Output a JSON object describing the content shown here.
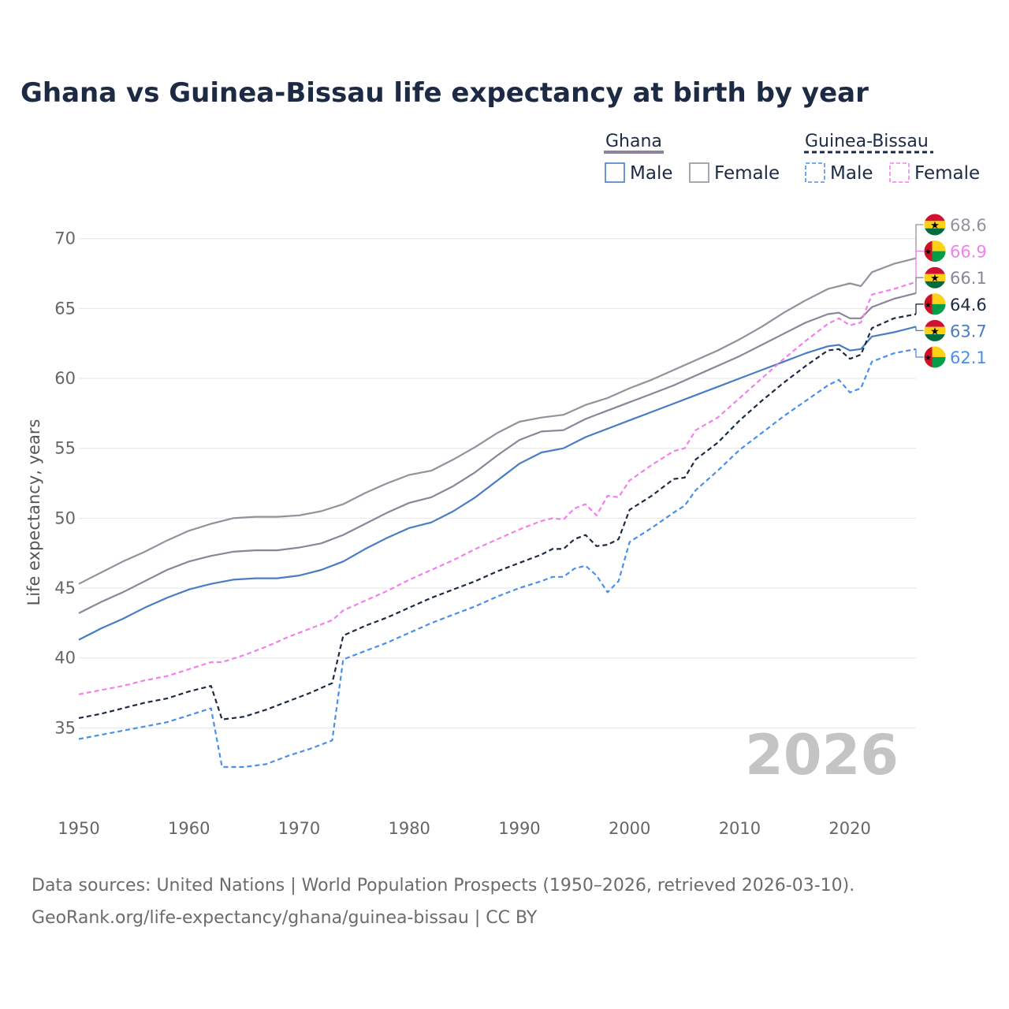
{
  "chart_data": {
    "type": "line",
    "title": "Ghana vs Guinea-Bissau life expectancy at birth by year",
    "ylabel": "Life expectancy, years",
    "xlabel": "",
    "xlim": [
      1950,
      2026
    ],
    "ylim": [
      30,
      71
    ],
    "x_ticks": [
      1950,
      1960,
      1970,
      1980,
      1990,
      2000,
      2010,
      2020
    ],
    "y_ticks": [
      35,
      40,
      45,
      50,
      55,
      60,
      65,
      70
    ],
    "current_year": "2026",
    "legend": {
      "groups": [
        {
          "name": "Ghana",
          "style": "solid",
          "color": "#8e8499",
          "items": [
            {
              "label": "Male",
              "color": "#4a7cc4"
            },
            {
              "label": "Female",
              "color": "#988f9c"
            }
          ]
        },
        {
          "name": "Guinea-Bissau",
          "style": "dashed",
          "color": "#1c2a44",
          "items": [
            {
              "label": "Male",
              "color": "#4a8fe8"
            },
            {
              "label": "Female",
              "color": "#f27fee"
            }
          ]
        }
      ]
    },
    "series": [
      {
        "name": "Ghana Female",
        "country": "Ghana",
        "color": "#988f9c",
        "dash": false,
        "end_label": "68.6",
        "points": [
          [
            1950,
            45.3
          ],
          [
            1952,
            46.1
          ],
          [
            1954,
            46.9
          ],
          [
            1956,
            47.6
          ],
          [
            1958,
            48.4
          ],
          [
            1960,
            49.1
          ],
          [
            1962,
            49.6
          ],
          [
            1964,
            50.0
          ],
          [
            1966,
            50.1
          ],
          [
            1968,
            50.1
          ],
          [
            1970,
            50.2
          ],
          [
            1972,
            50.5
          ],
          [
            1974,
            51.0
          ],
          [
            1976,
            51.8
          ],
          [
            1978,
            52.5
          ],
          [
            1980,
            53.1
          ],
          [
            1982,
            53.4
          ],
          [
            1984,
            54.2
          ],
          [
            1986,
            55.1
          ],
          [
            1988,
            56.1
          ],
          [
            1990,
            56.9
          ],
          [
            1992,
            57.2
          ],
          [
            1994,
            57.4
          ],
          [
            1996,
            58.1
          ],
          [
            1998,
            58.6
          ],
          [
            2000,
            59.3
          ],
          [
            2002,
            59.9
          ],
          [
            2004,
            60.6
          ],
          [
            2006,
            61.3
          ],
          [
            2008,
            62.0
          ],
          [
            2010,
            62.8
          ],
          [
            2012,
            63.7
          ],
          [
            2014,
            64.7
          ],
          [
            2016,
            65.6
          ],
          [
            2018,
            66.4
          ],
          [
            2020,
            66.8
          ],
          [
            2021,
            66.6
          ],
          [
            2022,
            67.6
          ],
          [
            2024,
            68.2
          ],
          [
            2026,
            68.6
          ]
        ]
      },
      {
        "name": "Ghana Male",
        "country": "Ghana",
        "color": "#4a7cc4",
        "dash": false,
        "end_label": "63.7",
        "points": [
          [
            1950,
            41.3
          ],
          [
            1952,
            42.1
          ],
          [
            1954,
            42.8
          ],
          [
            1956,
            43.6
          ],
          [
            1958,
            44.3
          ],
          [
            1960,
            44.9
          ],
          [
            1962,
            45.3
          ],
          [
            1964,
            45.6
          ],
          [
            1966,
            45.7
          ],
          [
            1968,
            45.7
          ],
          [
            1970,
            45.9
          ],
          [
            1972,
            46.3
          ],
          [
            1974,
            46.9
          ],
          [
            1976,
            47.8
          ],
          [
            1978,
            48.6
          ],
          [
            1980,
            49.3
          ],
          [
            1982,
            49.7
          ],
          [
            1984,
            50.5
          ],
          [
            1986,
            51.5
          ],
          [
            1988,
            52.7
          ],
          [
            1990,
            53.9
          ],
          [
            1992,
            54.7
          ],
          [
            1994,
            55.0
          ],
          [
            1996,
            55.8
          ],
          [
            1998,
            56.4
          ],
          [
            2000,
            57.0
          ],
          [
            2002,
            57.6
          ],
          [
            2004,
            58.2
          ],
          [
            2006,
            58.8
          ],
          [
            2008,
            59.4
          ],
          [
            2010,
            60.0
          ],
          [
            2012,
            60.6
          ],
          [
            2014,
            61.2
          ],
          [
            2016,
            61.8
          ],
          [
            2018,
            62.3
          ],
          [
            2019,
            62.4
          ],
          [
            2020,
            62.0
          ],
          [
            2021,
            62.1
          ],
          [
            2022,
            63.0
          ],
          [
            2024,
            63.3
          ],
          [
            2026,
            63.7
          ]
        ]
      },
      {
        "name": "Ghana Female (2nd)",
        "country": "Ghana",
        "color": "#8e8499",
        "dash": false,
        "end_label": "66.1",
        "points": [
          [
            1950,
            43.2
          ],
          [
            1952,
            44.0
          ],
          [
            1954,
            44.7
          ],
          [
            1956,
            45.5
          ],
          [
            1958,
            46.3
          ],
          [
            1960,
            46.9
          ],
          [
            1962,
            47.3
          ],
          [
            1964,
            47.6
          ],
          [
            1966,
            47.7
          ],
          [
            1968,
            47.7
          ],
          [
            1970,
            47.9
          ],
          [
            1972,
            48.2
          ],
          [
            1974,
            48.8
          ],
          [
            1976,
            49.6
          ],
          [
            1978,
            50.4
          ],
          [
            1980,
            51.1
          ],
          [
            1982,
            51.5
          ],
          [
            1984,
            52.3
          ],
          [
            1986,
            53.3
          ],
          [
            1988,
            54.5
          ],
          [
            1990,
            55.6
          ],
          [
            1992,
            56.2
          ],
          [
            1994,
            56.3
          ],
          [
            1996,
            57.1
          ],
          [
            1998,
            57.7
          ],
          [
            2000,
            58.3
          ],
          [
            2002,
            58.9
          ],
          [
            2004,
            59.5
          ],
          [
            2006,
            60.2
          ],
          [
            2008,
            60.9
          ],
          [
            2010,
            61.6
          ],
          [
            2012,
            62.4
          ],
          [
            2014,
            63.2
          ],
          [
            2016,
            64.0
          ],
          [
            2018,
            64.6
          ],
          [
            2019,
            64.7
          ],
          [
            2020,
            64.3
          ],
          [
            2021,
            64.3
          ],
          [
            2022,
            65.1
          ],
          [
            2024,
            65.7
          ],
          [
            2026,
            66.1
          ]
        ]
      },
      {
        "name": "Guinea-Bissau Female",
        "country": "Guinea-Bissau",
        "color": "#f27fee",
        "dash": true,
        "end_label": "66.9",
        "points": [
          [
            1950,
            37.4
          ],
          [
            1952,
            37.7
          ],
          [
            1954,
            38.0
          ],
          [
            1956,
            38.4
          ],
          [
            1958,
            38.7
          ],
          [
            1960,
            39.2
          ],
          [
            1962,
            39.7
          ],
          [
            1963,
            39.7
          ],
          [
            1965,
            40.2
          ],
          [
            1967,
            40.8
          ],
          [
            1969,
            41.5
          ],
          [
            1971,
            42.1
          ],
          [
            1973,
            42.7
          ],
          [
            1974,
            43.4
          ],
          [
            1976,
            44.1
          ],
          [
            1978,
            44.8
          ],
          [
            1980,
            45.6
          ],
          [
            1982,
            46.3
          ],
          [
            1984,
            47.0
          ],
          [
            1986,
            47.8
          ],
          [
            1988,
            48.5
          ],
          [
            1990,
            49.2
          ],
          [
            1992,
            49.8
          ],
          [
            1993,
            50.0
          ],
          [
            1994,
            49.9
          ],
          [
            1995,
            50.7
          ],
          [
            1996,
            51.0
          ],
          [
            1997,
            50.2
          ],
          [
            1998,
            51.6
          ],
          [
            1999,
            51.5
          ],
          [
            2000,
            52.7
          ],
          [
            2002,
            53.8
          ],
          [
            2004,
            54.8
          ],
          [
            2005,
            55.0
          ],
          [
            2006,
            56.3
          ],
          [
            2008,
            57.2
          ],
          [
            2010,
            58.6
          ],
          [
            2012,
            60.0
          ],
          [
            2014,
            61.4
          ],
          [
            2016,
            62.7
          ],
          [
            2018,
            63.9
          ],
          [
            2019,
            64.3
          ],
          [
            2020,
            63.8
          ],
          [
            2021,
            64.0
          ],
          [
            2022,
            66.0
          ],
          [
            2024,
            66.4
          ],
          [
            2026,
            66.9
          ]
        ]
      },
      {
        "name": "Guinea-Bissau Both",
        "country": "Guinea-Bissau",
        "color": "#1c2a44",
        "dash": true,
        "end_label": "64.6",
        "points": [
          [
            1950,
            35.7
          ],
          [
            1952,
            36.0
          ],
          [
            1954,
            36.4
          ],
          [
            1956,
            36.8
          ],
          [
            1958,
            37.1
          ],
          [
            1960,
            37.6
          ],
          [
            1962,
            38.0
          ],
          [
            1963,
            35.6
          ],
          [
            1965,
            35.8
          ],
          [
            1967,
            36.3
          ],
          [
            1969,
            36.9
          ],
          [
            1971,
            37.5
          ],
          [
            1973,
            38.2
          ],
          [
            1974,
            41.6
          ],
          [
            1976,
            42.3
          ],
          [
            1978,
            42.9
          ],
          [
            1980,
            43.6
          ],
          [
            1982,
            44.3
          ],
          [
            1984,
            44.9
          ],
          [
            1986,
            45.5
          ],
          [
            1988,
            46.2
          ],
          [
            1990,
            46.8
          ],
          [
            1992,
            47.4
          ],
          [
            1993,
            47.8
          ],
          [
            1994,
            47.8
          ],
          [
            1995,
            48.5
          ],
          [
            1996,
            48.8
          ],
          [
            1997,
            48.0
          ],
          [
            1998,
            48.1
          ],
          [
            1999,
            48.5
          ],
          [
            2000,
            50.6
          ],
          [
            2002,
            51.6
          ],
          [
            2004,
            52.8
          ],
          [
            2005,
            52.9
          ],
          [
            2006,
            54.2
          ],
          [
            2008,
            55.4
          ],
          [
            2010,
            57.0
          ],
          [
            2012,
            58.4
          ],
          [
            2014,
            59.7
          ],
          [
            2016,
            60.9
          ],
          [
            2018,
            62.0
          ],
          [
            2019,
            62.1
          ],
          [
            2020,
            61.4
          ],
          [
            2021,
            61.7
          ],
          [
            2022,
            63.6
          ],
          [
            2024,
            64.3
          ],
          [
            2026,
            64.6
          ]
        ]
      },
      {
        "name": "Guinea-Bissau Male",
        "country": "Guinea-Bissau",
        "color": "#4a8fe8",
        "dash": true,
        "end_label": "62.1",
        "points": [
          [
            1950,
            34.2
          ],
          [
            1952,
            34.5
          ],
          [
            1954,
            34.8
          ],
          [
            1956,
            35.1
          ],
          [
            1958,
            35.4
          ],
          [
            1960,
            35.9
          ],
          [
            1962,
            36.4
          ],
          [
            1963,
            32.2
          ],
          [
            1965,
            32.2
          ],
          [
            1967,
            32.4
          ],
          [
            1969,
            33.0
          ],
          [
            1971,
            33.5
          ],
          [
            1973,
            34.1
          ],
          [
            1974,
            39.9
          ],
          [
            1976,
            40.5
          ],
          [
            1978,
            41.1
          ],
          [
            1980,
            41.8
          ],
          [
            1982,
            42.5
          ],
          [
            1984,
            43.1
          ],
          [
            1986,
            43.7
          ],
          [
            1988,
            44.4
          ],
          [
            1990,
            45.0
          ],
          [
            1992,
            45.5
          ],
          [
            1993,
            45.8
          ],
          [
            1994,
            45.8
          ],
          [
            1995,
            46.4
          ],
          [
            1996,
            46.6
          ],
          [
            1997,
            45.9
          ],
          [
            1998,
            44.7
          ],
          [
            1999,
            45.5
          ],
          [
            2000,
            48.3
          ],
          [
            2002,
            49.3
          ],
          [
            2004,
            50.4
          ],
          [
            2005,
            50.9
          ],
          [
            2006,
            52.0
          ],
          [
            2008,
            53.4
          ],
          [
            2010,
            54.9
          ],
          [
            2012,
            56.1
          ],
          [
            2014,
            57.3
          ],
          [
            2016,
            58.4
          ],
          [
            2018,
            59.5
          ],
          [
            2019,
            59.9
          ],
          [
            2020,
            59.0
          ],
          [
            2021,
            59.3
          ],
          [
            2022,
            61.2
          ],
          [
            2024,
            61.8
          ],
          [
            2026,
            62.1
          ]
        ]
      }
    ],
    "end_labels": [
      {
        "value": "68.6",
        "country": "Ghana",
        "color": "#988f9c"
      },
      {
        "value": "66.9",
        "country": "Guinea-Bissau",
        "color": "#f27fee"
      },
      {
        "value": "66.1",
        "country": "Ghana",
        "color": "#8e8499"
      },
      {
        "value": "64.6",
        "country": "Guinea-Bissau",
        "color": "#1c2a44"
      },
      {
        "value": "63.7",
        "country": "Ghana",
        "color": "#4a7cc4"
      },
      {
        "value": "62.1",
        "country": "Guinea-Bissau",
        "color": "#4a8fe8"
      }
    ]
  },
  "source": {
    "line1": "Data sources: United Nations | World Population Prospects (1950–2026, retrieved 2026-03-10).",
    "line2": "GeoRank.org/life-expectancy/ghana/guinea-bissau | CC BY"
  },
  "flags": {
    "ghana": {
      "top": "#d21034",
      "mid": "#fcd116",
      "bottom": "#006b3f",
      "star": "#000000"
    },
    "guinea_bissau": {
      "red": "#ce1126",
      "yellow": "#fcd116",
      "green": "#009e49",
      "star": "#000000"
    }
  }
}
